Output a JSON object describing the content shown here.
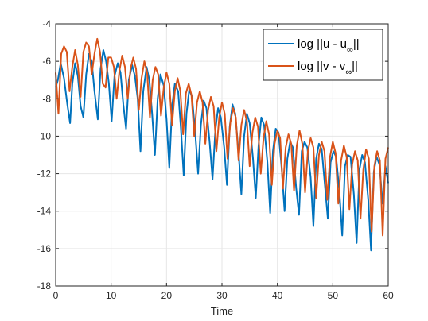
{
  "chart_data": {
    "type": "line",
    "title": "",
    "xlabel": "Time",
    "ylabel": "",
    "xlim": [
      0,
      60
    ],
    "ylim": [
      -18,
      -4
    ],
    "xticks": [
      0,
      10,
      20,
      30,
      40,
      50,
      60
    ],
    "yticks": [
      -18,
      -16,
      -14,
      -12,
      -10,
      -8,
      -6,
      -4
    ],
    "xtick_labels": [
      "0",
      "10",
      "20",
      "30",
      "40",
      "50",
      "60"
    ],
    "ytick_labels": [
      "-18",
      "-16",
      "-14",
      "-12",
      "-10",
      "-8",
      "-6",
      "-4"
    ],
    "grid": true,
    "legend_placement": "top-right",
    "series": [
      {
        "name": "log ||u - u∞||",
        "legend_main": "log ||u - u",
        "legend_sub": "∞",
        "legend_tail": "||",
        "color": "#0072BD",
        "x": [
          0,
          0.4,
          0.9,
          1.5,
          2.1,
          2.6,
          3.0,
          3.5,
          4.0,
          4.5,
          5.0,
          5.5,
          6.0,
          6.5,
          7.0,
          7.6,
          8.1,
          8.6,
          9.1,
          9.6,
          10.1,
          10.6,
          11.2,
          11.7,
          12.2,
          12.7,
          13.2,
          13.8,
          14.3,
          14.8,
          15.3,
          15.8,
          16.4,
          16.9,
          17.4,
          17.9,
          18.4,
          18.9,
          19.5,
          20.0,
          20.5,
          21.0,
          21.5,
          22.1,
          22.6,
          23.1,
          23.6,
          24.1,
          24.6,
          25.2,
          25.7,
          26.2,
          26.7,
          27.2,
          27.8,
          28.3,
          28.8,
          29.3,
          29.8,
          30.4,
          30.9,
          31.4,
          31.9,
          32.4,
          33.0,
          33.5,
          34.0,
          34.5,
          35.0,
          35.6,
          36.1,
          36.6,
          37.1,
          37.6,
          38.2,
          38.7,
          39.2,
          39.7,
          40.2,
          40.8,
          41.3,
          41.8,
          42.3,
          42.8,
          43.4,
          43.9,
          44.4,
          44.9,
          45.4,
          46.0,
          46.5,
          47.0,
          47.5,
          48.0,
          48.6,
          49.1,
          49.6,
          50.1,
          50.6,
          51.2,
          51.7,
          52.2,
          52.7,
          53.2,
          53.8,
          54.3,
          54.8,
          55.3,
          55.8,
          56.4,
          56.9,
          57.4,
          57.9,
          58.4,
          59.0,
          59.5,
          60.0
        ],
        "y": [
          -7.4,
          -7.0,
          -6.1,
          -6.9,
          -8.3,
          -9.3,
          -7.2,
          -6.1,
          -6.8,
          -8.4,
          -9.0,
          -6.7,
          -5.6,
          -6.0,
          -7.6,
          -9.1,
          -6.4,
          -5.4,
          -6.0,
          -7.2,
          -9.2,
          -6.8,
          -6.1,
          -6.6,
          -8.3,
          -9.6,
          -7.0,
          -6.2,
          -6.8,
          -8.0,
          -10.8,
          -7.6,
          -6.3,
          -7.0,
          -8.8,
          -11.0,
          -8.0,
          -6.7,
          -7.3,
          -9.1,
          -11.7,
          -8.4,
          -7.2,
          -7.6,
          -9.6,
          -12.1,
          -8.8,
          -7.5,
          -7.9,
          -9.9,
          -12.0,
          -9.4,
          -8.1,
          -8.5,
          -10.4,
          -12.3,
          -9.7,
          -8.5,
          -9.0,
          -10.6,
          -12.6,
          -9.5,
          -8.3,
          -8.8,
          -10.9,
          -13.1,
          -10.0,
          -8.8,
          -9.3,
          -11.2,
          -13.3,
          -10.5,
          -9.0,
          -9.4,
          -11.4,
          -14.1,
          -10.8,
          -9.6,
          -9.8,
          -11.8,
          -14.0,
          -11.2,
          -10.3,
          -10.6,
          -12.8,
          -14.2,
          -10.8,
          -10.3,
          -10.6,
          -12.2,
          -14.8,
          -11.2,
          -10.4,
          -10.7,
          -12.7,
          -14.4,
          -11.4,
          -10.8,
          -11.1,
          -13.0,
          -15.3,
          -11.6,
          -11.0,
          -11.1,
          -13.1,
          -15.7,
          -11.8,
          -11.0,
          -11.4,
          -13.4,
          -16.1,
          -11.9,
          -11.1,
          -11.5,
          -13.6,
          -11.6,
          -12.5
        ]
      },
      {
        "name": "log ||v - v∞||",
        "legend_main": "log ||v - v",
        "legend_sub": "∞",
        "legend_tail": "||",
        "color": "#D95319",
        "x": [
          0,
          0.5,
          1.0,
          1.5,
          2.0,
          2.5,
          3.0,
          3.5,
          4.0,
          4.5,
          5.0,
          5.5,
          6.0,
          6.5,
          7.0,
          7.5,
          8.0,
          8.5,
          9.0,
          9.5,
          10.0,
          10.5,
          11.0,
          11.5,
          12.0,
          12.5,
          13.0,
          13.5,
          14.0,
          14.5,
          15.0,
          15.5,
          16.0,
          16.5,
          17.0,
          17.5,
          18.0,
          18.5,
          19.0,
          19.5,
          20.0,
          20.5,
          21.0,
          21.5,
          22.0,
          22.5,
          23.0,
          23.5,
          24.0,
          24.5,
          25.0,
          25.5,
          26.0,
          26.5,
          27.0,
          27.5,
          28.0,
          28.5,
          29.0,
          29.5,
          30.0,
          30.5,
          31.0,
          31.5,
          32.0,
          32.5,
          33.0,
          33.5,
          34.0,
          34.5,
          35.0,
          35.5,
          36.0,
          36.5,
          37.0,
          37.5,
          38.0,
          38.5,
          39.0,
          39.5,
          40.0,
          40.5,
          41.0,
          41.5,
          42.0,
          42.5,
          43.0,
          43.5,
          44.0,
          44.5,
          45.0,
          45.5,
          46.0,
          46.5,
          47.0,
          47.5,
          48.0,
          48.5,
          49.0,
          49.5,
          50.0,
          50.5,
          51.0,
          51.5,
          52.0,
          52.5,
          53.0,
          53.5,
          54.0,
          54.5,
          55.0,
          55.5,
          56.0,
          56.5,
          57.0,
          57.5,
          58.0,
          58.5,
          59.0,
          59.5,
          60.0
        ],
        "y": [
          -6.6,
          -8.8,
          -5.6,
          -5.2,
          -5.5,
          -7.6,
          -6.3,
          -5.4,
          -6.2,
          -7.9,
          -5.5,
          -5.0,
          -5.2,
          -6.7,
          -5.6,
          -4.8,
          -5.5,
          -7.2,
          -7.4,
          -5.8,
          -5.8,
          -6.3,
          -8.0,
          -6.5,
          -5.7,
          -6.3,
          -8.0,
          -6.4,
          -5.8,
          -6.4,
          -8.6,
          -6.9,
          -6.0,
          -6.6,
          -9.0,
          -7.0,
          -6.3,
          -6.7,
          -8.9,
          -7.4,
          -6.6,
          -7.2,
          -9.4,
          -7.6,
          -6.9,
          -7.6,
          -9.9,
          -7.7,
          -7.2,
          -7.8,
          -10.0,
          -8.2,
          -7.6,
          -8.2,
          -10.4,
          -8.6,
          -7.9,
          -8.4,
          -10.8,
          -9.0,
          -8.2,
          -8.8,
          -11.2,
          -9.3,
          -8.5,
          -9.0,
          -11.3,
          -9.4,
          -8.6,
          -9.2,
          -11.6,
          -9.8,
          -9.0,
          -9.5,
          -12.0,
          -10.1,
          -9.2,
          -9.9,
          -12.6,
          -10.4,
          -9.7,
          -10.1,
          -12.8,
          -10.6,
          -9.9,
          -10.4,
          -12.9,
          -10.5,
          -9.7,
          -10.4,
          -13.0,
          -10.8,
          -10.1,
          -10.6,
          -13.3,
          -11.0,
          -10.3,
          -10.8,
          -13.4,
          -11.1,
          -10.3,
          -10.9,
          -13.6,
          -11.3,
          -10.5,
          -11.1,
          -13.9,
          -11.5,
          -10.8,
          -11.3,
          -14.4,
          -11.8,
          -10.7,
          -11.2,
          -15.1,
          -11.6,
          -10.8,
          -11.3,
          -15.3,
          -11.2,
          -10.6
        ]
      }
    ]
  }
}
